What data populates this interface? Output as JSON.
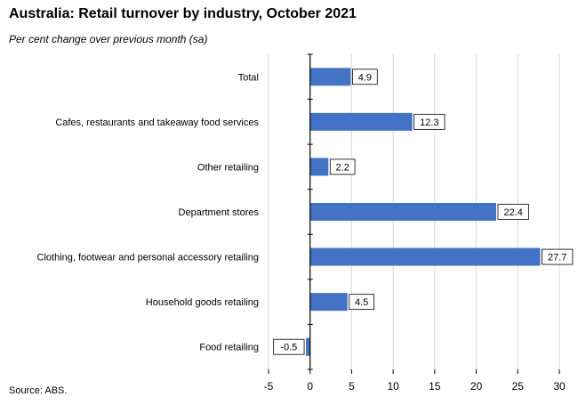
{
  "chart_data": {
    "type": "bar",
    "orientation": "horizontal",
    "title": "Australia: Retail turnover by industry, October 2021",
    "subtitle": "Per cent change over previous month (sa)",
    "source": "Source: ABS.",
    "categories": [
      "Total",
      "Cafes, restaurants and takeaway food services",
      "Other retailing",
      "Department stores",
      "Clothing, footwear and personal accessory retailing",
      "Household goods retailing",
      "Food retailing"
    ],
    "values": [
      4.9,
      12.3,
      2.2,
      22.4,
      27.7,
      4.5,
      -0.5
    ],
    "value_labels": [
      "4.9",
      "12.3",
      "2.2",
      "22.4",
      "27.7",
      "4.5",
      "-0.5"
    ],
    "xlim": [
      -5,
      30
    ],
    "xticks": [
      "-5",
      "0",
      "5",
      "10",
      "15",
      "20",
      "25",
      "30"
    ],
    "grid": "vertical",
    "bar_color": "#4472C4",
    "grid_color": "#D9D9D9"
  }
}
